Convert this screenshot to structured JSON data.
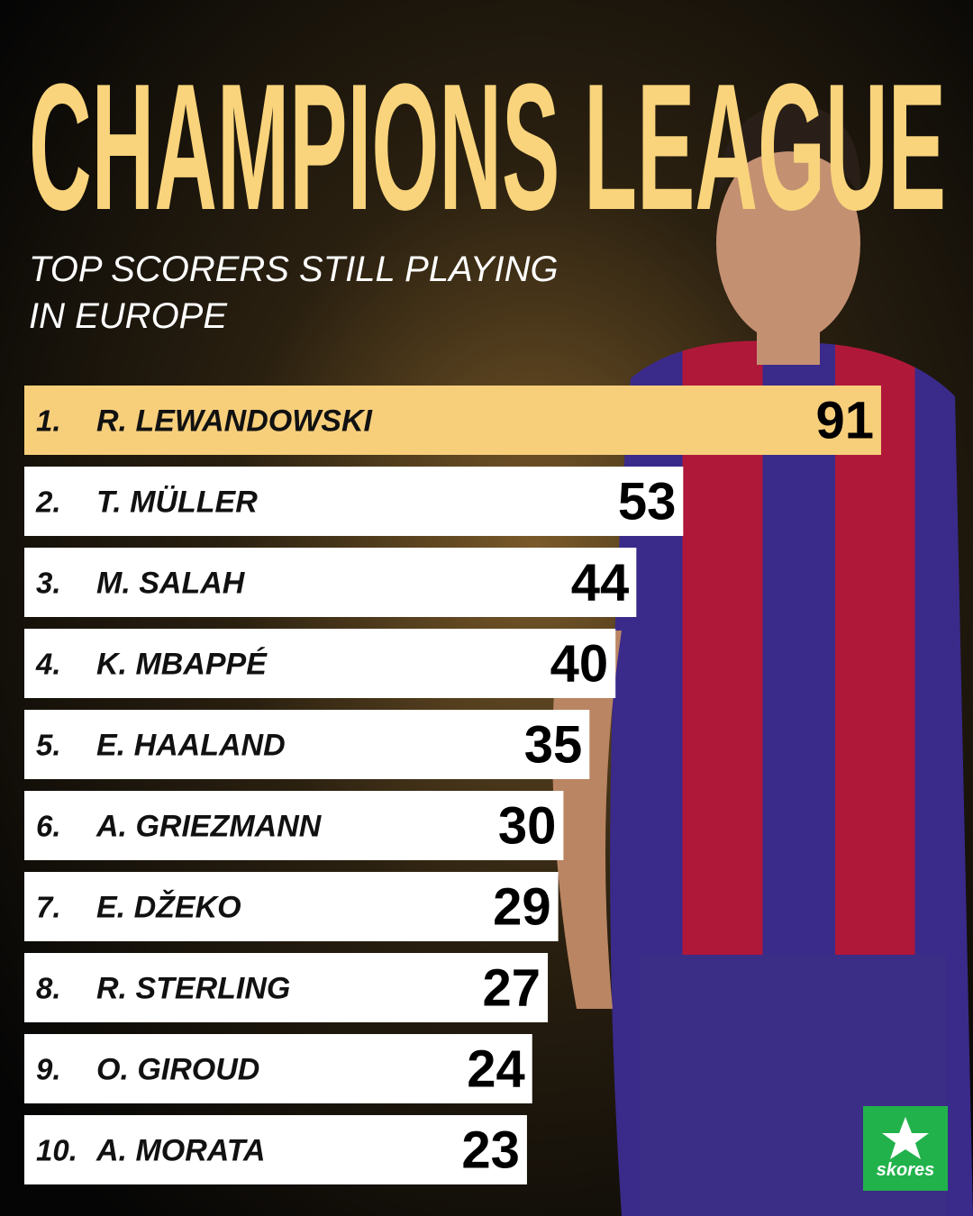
{
  "chart_data": {
    "type": "bar",
    "title": "CHAMPIONS LEAGUE",
    "subtitle_lines": [
      "TOP SCORERS STILL PLAYING",
      "IN EUROPE"
    ],
    "ranks": [
      "1.",
      "2.",
      "3.",
      "4.",
      "5.",
      "6.",
      "7.",
      "8.",
      "9.",
      "10."
    ],
    "categories": [
      "R. LEWANDOWSKI",
      "T. MÜLLER",
      "M. SALAH",
      "K. MBAPPÉ",
      "E. HAALAND",
      "A. GRIEZMANN",
      "E. DŽEKO",
      "R. STERLING",
      "O. GIROUD",
      "A. MORATA"
    ],
    "values": [
      91,
      53,
      44,
      40,
      35,
      30,
      29,
      27,
      24,
      23
    ],
    "colors": [
      "#f7cf7b",
      "#ffffff",
      "#ffffff",
      "#ffffff",
      "#ffffff",
      "#ffffff",
      "#ffffff",
      "#ffffff",
      "#ffffff",
      "#ffffff"
    ],
    "brand": "skores"
  }
}
